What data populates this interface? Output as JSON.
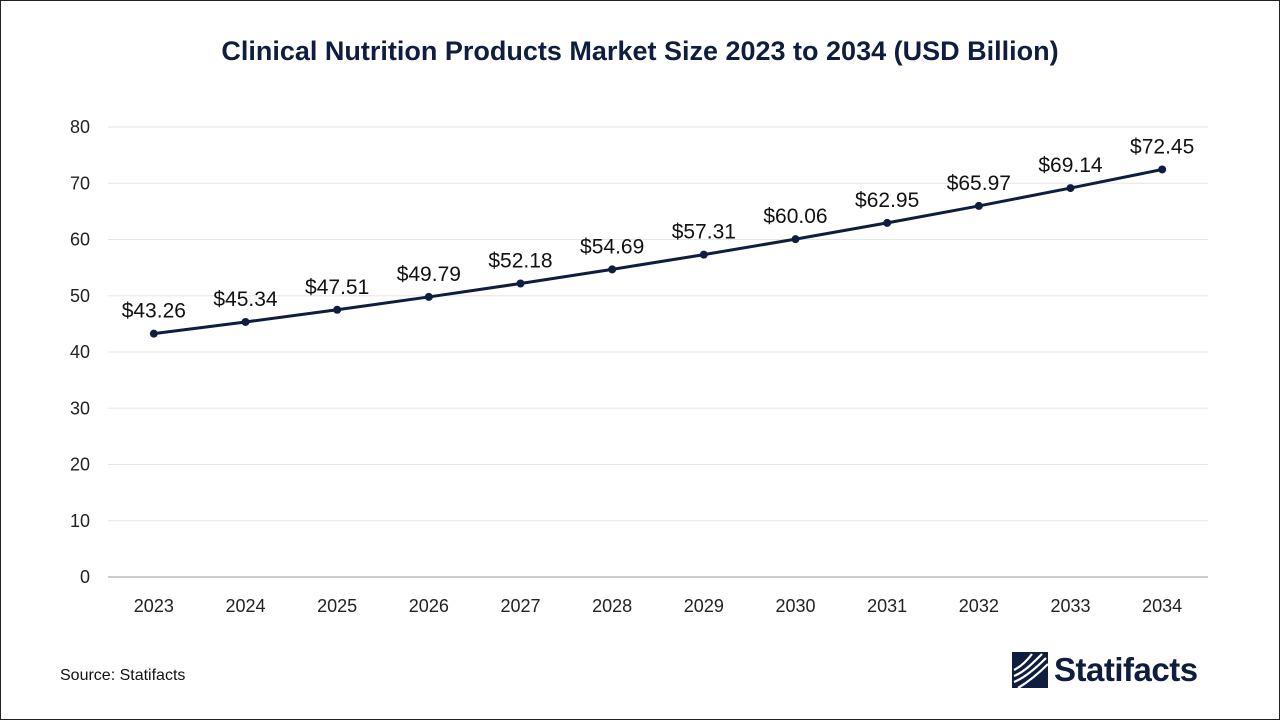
{
  "chart_data": {
    "type": "line",
    "title": "Clinical Nutrition Products Market Size 2023 to 2034 (USD Billion)",
    "xlabel": "",
    "ylabel": "",
    "categories": [
      "2023",
      "2024",
      "2025",
      "2026",
      "2027",
      "2028",
      "2029",
      "2030",
      "2031",
      "2032",
      "2033",
      "2034"
    ],
    "values": [
      43.26,
      45.34,
      47.51,
      49.79,
      52.18,
      54.69,
      57.31,
      60.06,
      62.95,
      65.97,
      69.14,
      72.45
    ],
    "data_labels": [
      "$43.26",
      "$45.34",
      "$47.51",
      "$49.79",
      "$52.18",
      "$54.69",
      "$57.31",
      "$60.06",
      "$62.95",
      "$65.97",
      "$69.14",
      "$72.45"
    ],
    "ylim": [
      0,
      80
    ],
    "yticks": [
      "0",
      "10",
      "20",
      "30",
      "40",
      "50",
      "60",
      "70",
      "80"
    ],
    "grid": true,
    "line_color": "#0f1d3e"
  },
  "footer": {
    "source": "Source: Statifacts",
    "brand": "Statifacts"
  }
}
